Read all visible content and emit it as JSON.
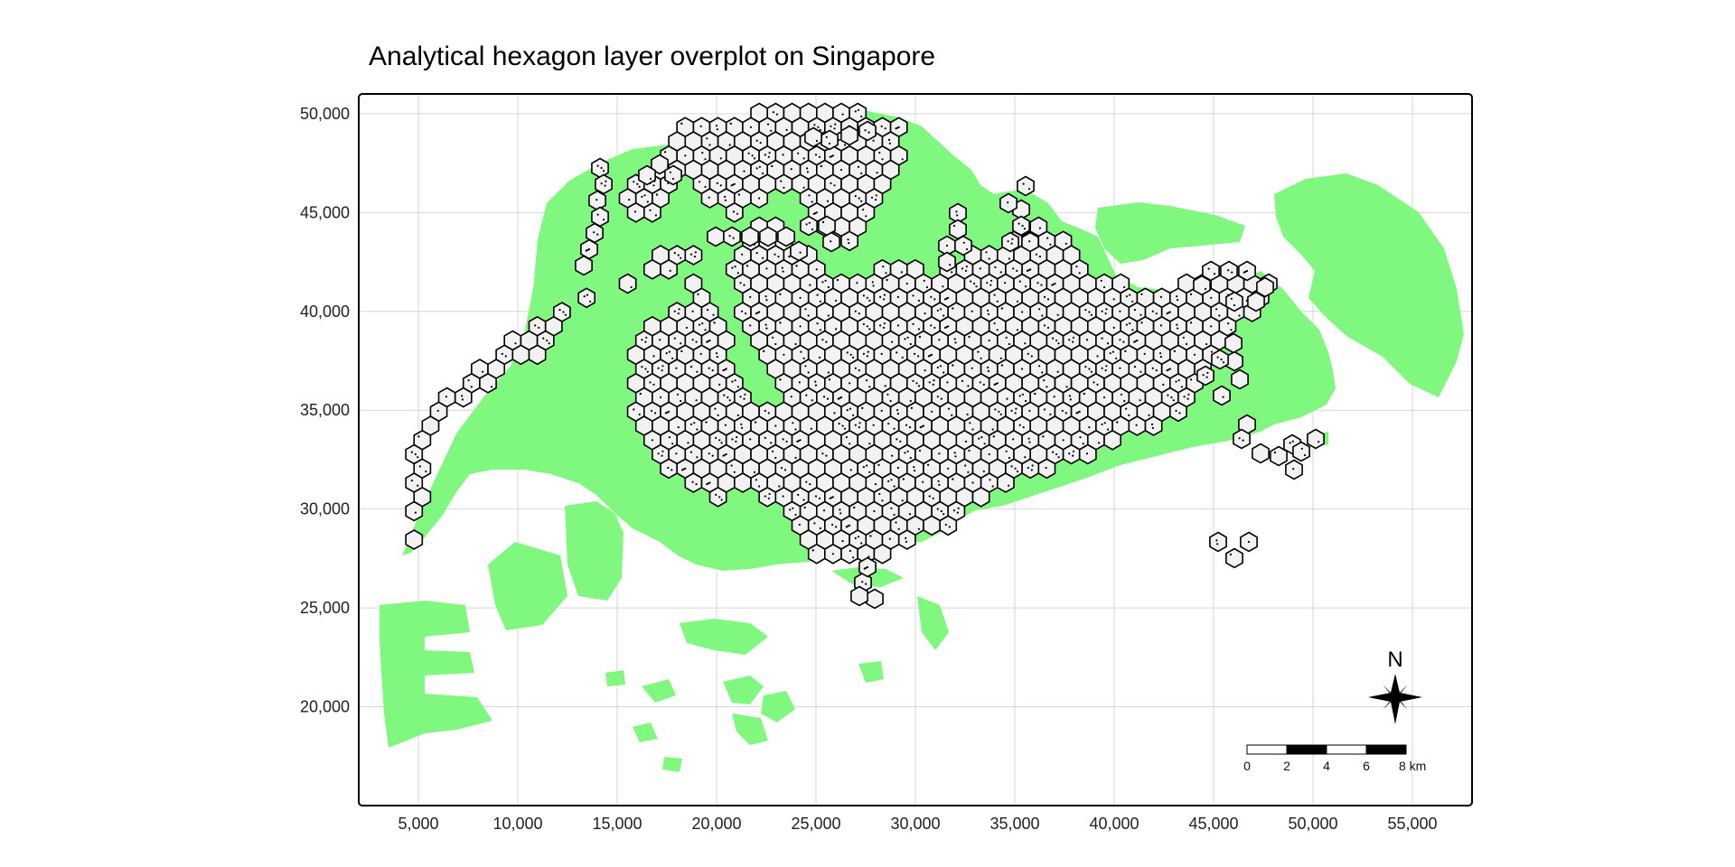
{
  "map": {
    "title": "Analytical hexagon layer overplot on Singapore",
    "x_axis": {
      "range": [
        2000,
        58000
      ],
      "ticks": [
        5000,
        10000,
        15000,
        20000,
        25000,
        30000,
        35000,
        40000,
        45000,
        50000,
        55000
      ],
      "tick_labels": [
        "5,000",
        "10,000",
        "15,000",
        "20,000",
        "25,000",
        "30,000",
        "35,000",
        "40,000",
        "45,000",
        "50,000",
        "55,000"
      ]
    },
    "y_axis": {
      "range": [
        15000,
        51000
      ],
      "ticks": [
        20000,
        25000,
        30000,
        35000,
        40000,
        45000,
        50000
      ],
      "tick_labels": [
        "20,000",
        "25,000",
        "30,000",
        "35,000",
        "40,000",
        "45,000",
        "50,000"
      ]
    },
    "grid": true,
    "layers": [
      {
        "name": "land",
        "fill": "#80f880"
      },
      {
        "name": "hexagons",
        "fill": "#f2f2f2",
        "stroke": "#000000"
      }
    ],
    "north_arrow": {
      "letter": "N",
      "placement": "bottom-right"
    },
    "scale_bar": {
      "labels": [
        "0",
        "2",
        "4",
        "6",
        "8 km"
      ],
      "placement": "bottom-right"
    }
  }
}
